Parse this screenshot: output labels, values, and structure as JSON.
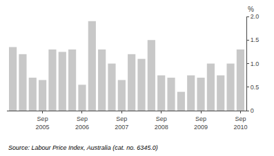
{
  "chart_data": {
    "type": "bar",
    "categories": [
      null,
      null,
      null,
      "Sep\n2005",
      null,
      null,
      null,
      "Sep\n2006",
      null,
      null,
      null,
      "Sep\n2007",
      null,
      null,
      null,
      "Sep\n2008",
      null,
      null,
      null,
      "Sep\n2009",
      null,
      null,
      null,
      "Sep\n2010"
    ],
    "values": [
      1.35,
      1.2,
      0.7,
      0.65,
      1.3,
      1.25,
      1.3,
      0.55,
      1.9,
      1.3,
      1.0,
      0.65,
      1.2,
      1.1,
      1.5,
      0.75,
      0.7,
      0.4,
      0.75,
      0.7,
      1.0,
      0.75,
      1.0,
      1.3
    ],
    "color": "#c8c8c8",
    "ylabel": "%",
    "source": "Source: Labour Price Index, Australia (cat. no. 6345.0)",
    "ylim": [
      0,
      2.0
    ],
    "yticks": [
      0,
      0.5,
      {
        "value": 1.0,
        "label": "1.0"
      },
      1.5,
      {
        "value": 2.0,
        "label": "2.0"
      }
    ],
    "grid": false
  }
}
